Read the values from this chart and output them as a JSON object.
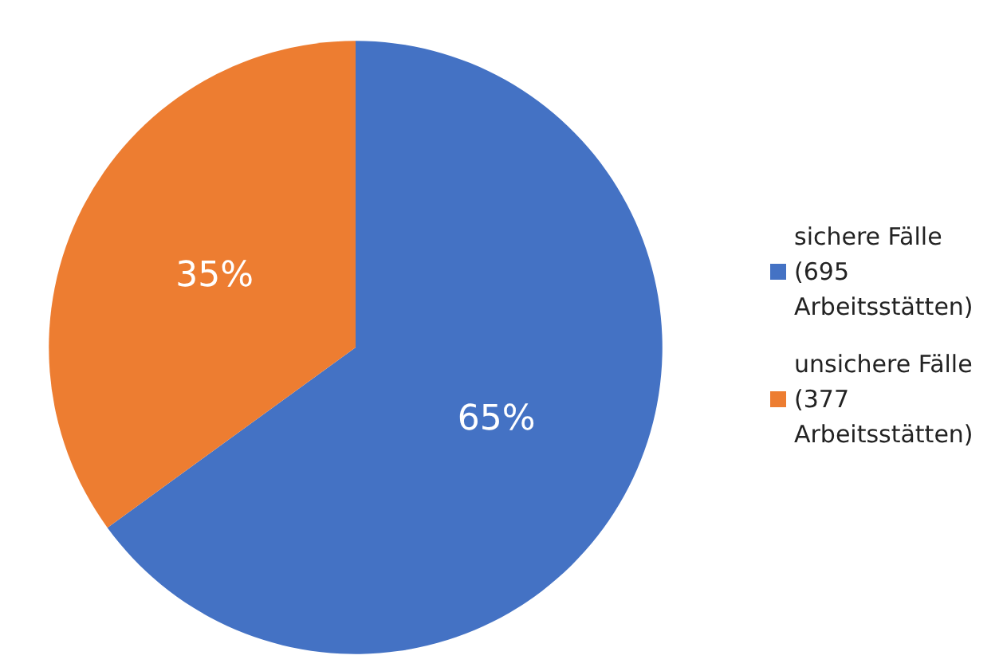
{
  "chart_data": {
    "type": "pie",
    "categories": [
      "sichere Fälle (695 Arbeitsstätten)",
      "unsichere Fälle (377 Arbeitsstätten)"
    ],
    "values": [
      65,
      35
    ],
    "colors": [
      "#4472c4",
      "#ed7d31"
    ],
    "value_labels": [
      "65%",
      "35%"
    ],
    "legend": "right"
  }
}
